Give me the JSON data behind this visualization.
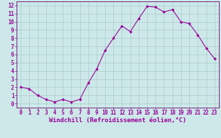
{
  "x": [
    0,
    1,
    2,
    3,
    4,
    5,
    6,
    7,
    8,
    9,
    10,
    11,
    12,
    13,
    14,
    15,
    16,
    17,
    18,
    19,
    20,
    21,
    22,
    23
  ],
  "y": [
    2.0,
    1.8,
    1.0,
    0.5,
    0.2,
    0.5,
    0.2,
    0.5,
    2.5,
    4.2,
    6.5,
    8.0,
    9.5,
    8.8,
    10.4,
    11.9,
    11.8,
    11.2,
    11.5,
    10.0,
    9.8,
    8.4,
    6.8,
    5.5
  ],
  "line_color": "#990099",
  "marker": "D",
  "marker_size": 1.8,
  "linewidth": 0.8,
  "xlabel": "Windchill (Refroidissement éolien,°C)",
  "xlim": [
    -0.5,
    23.5
  ],
  "ylim": [
    -0.5,
    12.5
  ],
  "xticks": [
    0,
    1,
    2,
    3,
    4,
    5,
    6,
    7,
    8,
    9,
    10,
    11,
    12,
    13,
    14,
    15,
    16,
    17,
    18,
    19,
    20,
    21,
    22,
    23
  ],
  "yticks": [
    0,
    1,
    2,
    3,
    4,
    5,
    6,
    7,
    8,
    9,
    10,
    11,
    12
  ],
  "background_color": "#cce8e8",
  "grid_color": "#aacccc",
  "xlabel_fontsize": 6.5,
  "tick_fontsize": 5.5,
  "tick_color": "#990099",
  "label_color": "#990099",
  "spine_color": "#660066",
  "bottom_bar_color": "#7700aa"
}
